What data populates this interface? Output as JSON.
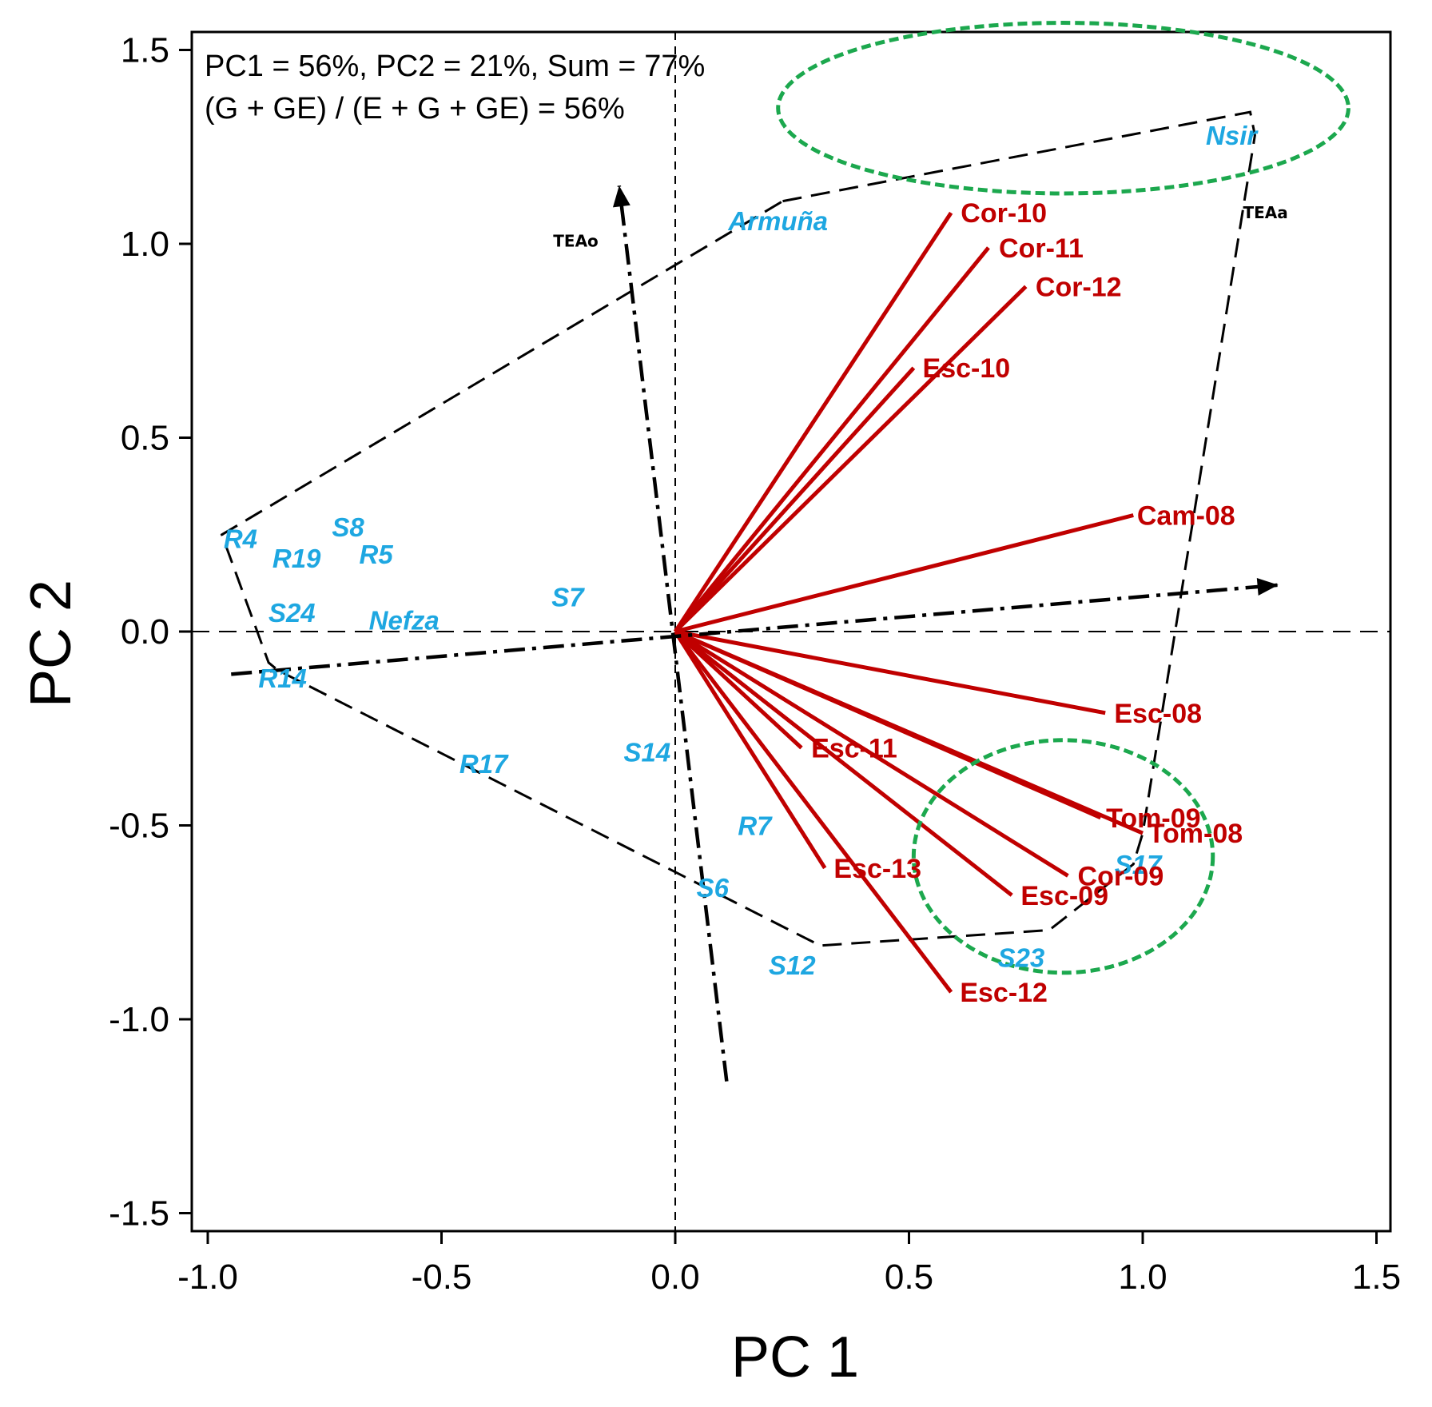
{
  "chart_data": {
    "type": "scatter",
    "subtype": "GGE biplot",
    "xlabel": "PC 1",
    "ylabel": "PC 2",
    "xlim": [
      -1.03,
      1.53
    ],
    "ylim": [
      -1.55,
      1.55
    ],
    "xticks": [
      -1.0,
      -0.5,
      0.0,
      0.5,
      1.0,
      1.5
    ],
    "xtick_labels": [
      "-1.0",
      "-0.5",
      "0.0",
      "0.5",
      "1.0",
      "1.5"
    ],
    "yticks": [
      -1.5,
      -1.0,
      -0.5,
      0.0,
      0.5,
      1.0,
      1.5
    ],
    "ytick_labels": [
      "-1.5",
      "-1.0",
      "-0.5",
      "0.0",
      "0.5",
      "1.0",
      "1.5"
    ],
    "annotations": [
      "PC1 =  56%, PC2 = 21%, Sum = 77%",
      "(G + GE) / (E + G + GE) = 56%"
    ],
    "colors": {
      "genotype": "#1ea7e1",
      "environment": "#c00000",
      "hull": "#000000",
      "cluster": "#1ca84e"
    },
    "genotypes": [
      {
        "name": "R4",
        "x": -0.93,
        "y": 0.24
      },
      {
        "name": "R19",
        "x": -0.81,
        "y": 0.19
      },
      {
        "name": "S8",
        "x": -0.7,
        "y": 0.27
      },
      {
        "name": "R5",
        "x": -0.64,
        "y": 0.2
      },
      {
        "name": "S24",
        "x": -0.82,
        "y": 0.05
      },
      {
        "name": "Nefza",
        "x": -0.58,
        "y": 0.03
      },
      {
        "name": "S7",
        "x": -0.23,
        "y": 0.09
      },
      {
        "name": "R14",
        "x": -0.84,
        "y": -0.12
      },
      {
        "name": "R17",
        "x": -0.41,
        "y": -0.34
      },
      {
        "name": "S14",
        "x": -0.06,
        "y": -0.31
      },
      {
        "name": "R7",
        "x": 0.17,
        "y": -0.5
      },
      {
        "name": "S6",
        "x": 0.08,
        "y": -0.66
      },
      {
        "name": "S12",
        "x": 0.25,
        "y": -0.86
      },
      {
        "name": "S23",
        "x": 0.74,
        "y": -0.84
      },
      {
        "name": "S17",
        "x": 0.99,
        "y": -0.6
      },
      {
        "name": "Armuña",
        "x": 0.22,
        "y": 1.06
      },
      {
        "name": "Nsir",
        "x": 1.19,
        "y": 1.28
      }
    ],
    "environments": [
      {
        "name": "Cor-10",
        "x": 0.59,
        "y": 1.08
      },
      {
        "name": "Cor-11",
        "x": 0.67,
        "y": 0.99
      },
      {
        "name": "Cor-12",
        "x": 0.75,
        "y": 0.89
      },
      {
        "name": "Esc-10",
        "x": 0.51,
        "y": 0.68
      },
      {
        "name": "Cam-08",
        "x": 0.98,
        "y": 0.3
      },
      {
        "name": "Esc-08",
        "x": 0.92,
        "y": -0.21
      },
      {
        "name": "Esc-11",
        "x": 0.27,
        "y": -0.3
      },
      {
        "name": "Tom-09",
        "x": 0.91,
        "y": -0.48
      },
      {
        "name": "Tom-08",
        "x": 1.0,
        "y": -0.52
      },
      {
        "name": "Cor-09",
        "x": 0.84,
        "y": -0.63
      },
      {
        "name": "Esc-13",
        "x": 0.32,
        "y": -0.61
      },
      {
        "name": "Esc-09",
        "x": 0.72,
        "y": -0.68
      },
      {
        "name": "Esc-12",
        "x": 0.59,
        "y": -0.93
      }
    ],
    "hull": [
      [
        0.23,
        1.11
      ],
      [
        1.23,
        1.34
      ],
      [
        1.24,
        1.28
      ],
      [
        1.0,
        -0.52
      ],
      [
        0.98,
        -0.6
      ],
      [
        0.8,
        -0.77
      ],
      [
        0.31,
        -0.81
      ],
      [
        -0.85,
        -0.1
      ],
      [
        -0.87,
        -0.08
      ],
      [
        -0.97,
        0.25
      ]
    ],
    "axis_arrows": [
      {
        "name": "TEAa",
        "from": [
          -0.95,
          -0.11
        ],
        "to": [
          1.29,
          0.12
        ]
      },
      {
        "name": "TEAo",
        "from": [
          0.11,
          -1.16
        ],
        "to": [
          -0.12,
          1.15
        ]
      }
    ],
    "clusters": [
      {
        "center": [
          0.83,
          1.35
        ],
        "rx": 0.61,
        "ry": 0.22
      },
      {
        "center": [
          0.83,
          -0.58
        ],
        "rx": 0.32,
        "ry": 0.3
      }
    ]
  }
}
